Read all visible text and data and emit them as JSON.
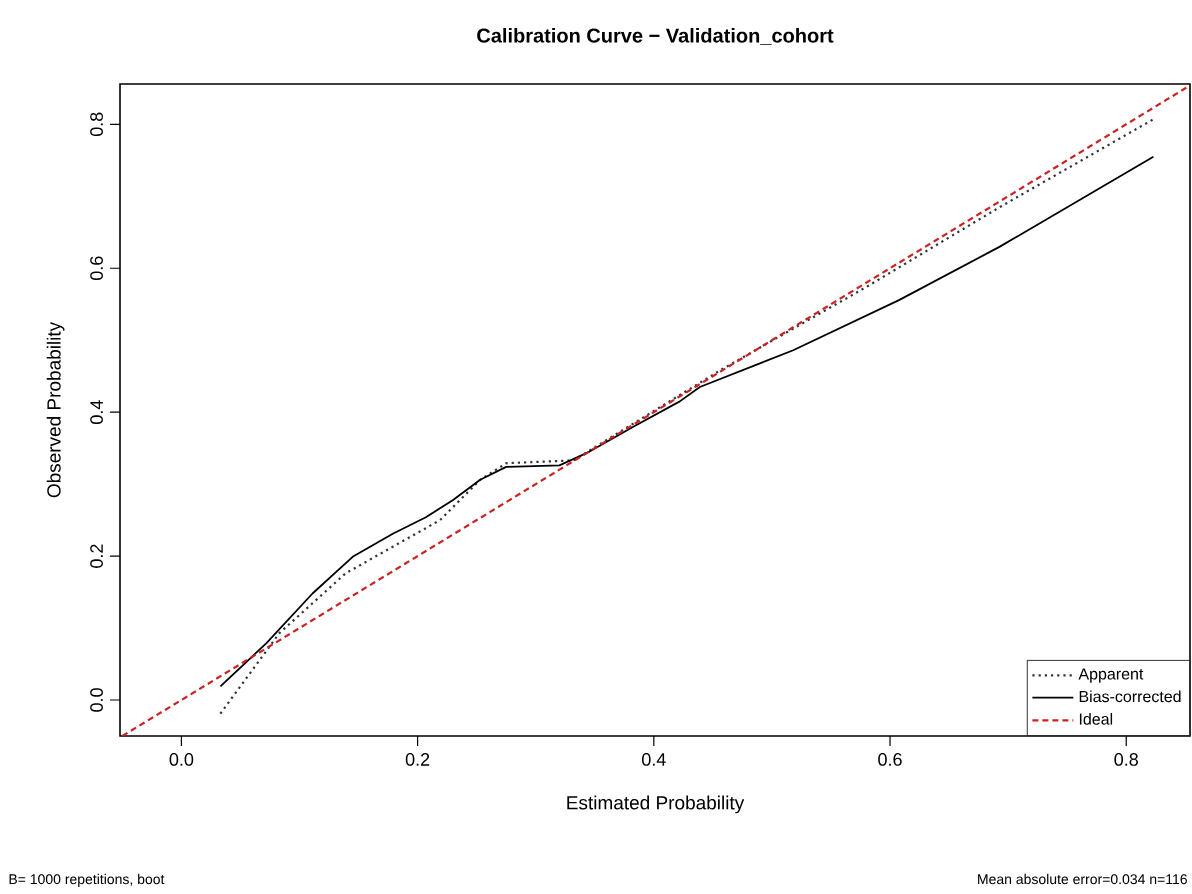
{
  "chart_data": {
    "type": "line",
    "title": "Calibration Curve − Validation_cohort",
    "xlabel": "Estimated Probability",
    "ylabel": "Observed Probability",
    "xlim": [
      -0.052,
      0.854
    ],
    "ylim": [
      -0.05,
      0.856
    ],
    "xticks": [
      {
        "value": 0,
        "label": "0.0"
      },
      0.2,
      0.4,
      0.6,
      0.8
    ],
    "yticks": [
      {
        "value": 0,
        "label": "0.0"
      },
      0.2,
      0.4,
      0.6,
      0.8
    ],
    "grid": false,
    "legend": "bottom right",
    "marker": "none",
    "series": [
      {
        "name": "Apparent",
        "color": "#333333",
        "line_style": "dotted",
        "x": [
          0.033,
          0.083,
          0.139,
          0.179,
          0.219,
          0.253,
          0.275,
          0.332,
          0.456,
          0.58,
          0.693,
          0.823
        ],
        "values": [
          -0.019,
          0.093,
          0.176,
          0.213,
          0.25,
          0.306,
          0.329,
          0.333,
          0.458,
          0.574,
          0.685,
          0.807
        ]
      },
      {
        "name": "Bias-corrected",
        "color": "#000000",
        "line_style": "solid",
        "x": [
          0.033,
          0.072,
          0.111,
          0.145,
          0.179,
          0.207,
          0.23,
          0.253,
          0.275,
          0.32,
          0.343,
          0.383,
          0.422,
          0.439,
          0.518,
          0.608,
          0.693,
          0.823
        ],
        "values": [
          0.019,
          0.079,
          0.148,
          0.199,
          0.231,
          0.254,
          0.278,
          0.306,
          0.324,
          0.326,
          0.343,
          0.38,
          0.415,
          0.435,
          0.486,
          0.556,
          0.63,
          0.755
        ]
      },
      {
        "name": "Ideal",
        "color": "#cc2222",
        "line_style": "dashed",
        "x": [
          -0.05,
          0.854
        ],
        "values": [
          -0.05,
          0.854
        ]
      }
    ],
    "annotations": [
      "B= 1000 repetitions, boot",
      "Mean absolute error=0.034 n=116"
    ]
  }
}
